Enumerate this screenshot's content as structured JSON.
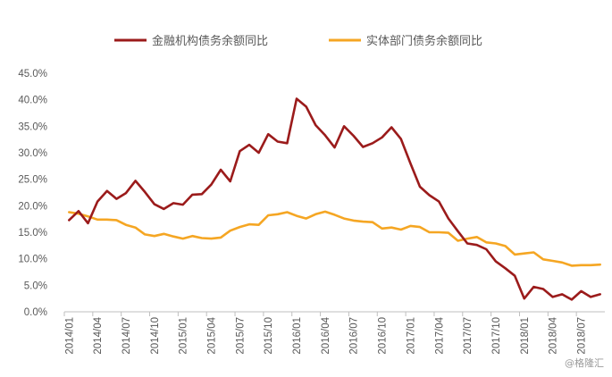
{
  "chart_data": {
    "type": "line",
    "title": "",
    "xlabel": "",
    "ylabel": "",
    "ylim": [
      0,
      45
    ],
    "y_ticks": [
      "0.0%",
      "5.0%",
      "10.0%",
      "15.0%",
      "20.0%",
      "25.0%",
      "30.0%",
      "35.0%",
      "40.0%",
      "45.0%"
    ],
    "grid": false,
    "legend_position": "top",
    "x_ticks": [
      "2014/01",
      "2014/04",
      "2014/07",
      "2014/10",
      "2015/01",
      "2015/04",
      "2015/07",
      "2015/10",
      "2016/01",
      "2016/04",
      "2016/07",
      "2016/10",
      "2017/01",
      "2017/04",
      "2017/07",
      "2017/10",
      "2018/01",
      "2018/04",
      "2018/07"
    ],
    "x": [
      "2014/01",
      "2014/02",
      "2014/03",
      "2014/04",
      "2014/05",
      "2014/06",
      "2014/07",
      "2014/08",
      "2014/09",
      "2014/10",
      "2014/11",
      "2014/12",
      "2015/01",
      "2015/02",
      "2015/03",
      "2015/04",
      "2015/05",
      "2015/06",
      "2015/07",
      "2015/08",
      "2015/09",
      "2015/10",
      "2015/11",
      "2015/12",
      "2016/01",
      "2016/02",
      "2016/03",
      "2016/04",
      "2016/05",
      "2016/06",
      "2016/07",
      "2016/08",
      "2016/09",
      "2016/10",
      "2016/11",
      "2016/12",
      "2017/01",
      "2017/02",
      "2017/03",
      "2017/04",
      "2017/05",
      "2017/06",
      "2017/07",
      "2017/08",
      "2017/09",
      "2017/10",
      "2017/11",
      "2017/12",
      "2018/01",
      "2018/02",
      "2018/03",
      "2018/04",
      "2018/05",
      "2018/06",
      "2018/07",
      "2018/08",
      "2018/09"
    ],
    "series": [
      {
        "name": "金融机构债务余额同比",
        "color": "#9B1B1B",
        "values": [
          17.3,
          19.0,
          16.7,
          20.8,
          22.8,
          21.3,
          22.4,
          24.7,
          22.6,
          20.3,
          19.4,
          20.5,
          20.2,
          22.1,
          22.2,
          24.0,
          26.8,
          24.6,
          30.3,
          31.5,
          30.0,
          33.5,
          32.1,
          31.8,
          40.2,
          38.7,
          35.2,
          33.3,
          31.0,
          35.0,
          33.2,
          31.1,
          31.8,
          32.9,
          34.8,
          32.6,
          28.0,
          23.6,
          22.0,
          20.8,
          17.6,
          15.2,
          12.9,
          12.6,
          11.8,
          9.5,
          8.2,
          6.8,
          2.5,
          4.7,
          4.3,
          2.8,
          3.3,
          2.3,
          3.9,
          2.8,
          3.3
        ]
      },
      {
        "name": "实体部门债务余额同比",
        "color": "#F5A623",
        "values": [
          18.8,
          18.5,
          18.0,
          17.4,
          17.4,
          17.3,
          16.4,
          15.9,
          14.6,
          14.3,
          14.7,
          14.2,
          13.8,
          14.3,
          13.9,
          13.8,
          14.0,
          15.3,
          16.0,
          16.5,
          16.4,
          18.2,
          18.4,
          18.8,
          18.1,
          17.6,
          18.4,
          18.9,
          18.3,
          17.6,
          17.2,
          17.0,
          16.9,
          15.7,
          15.9,
          15.5,
          16.2,
          16.0,
          15.0,
          15.0,
          14.9,
          13.4,
          13.8,
          14.1,
          13.1,
          12.9,
          12.4,
          10.8,
          11.0,
          11.2,
          9.9,
          9.6,
          9.3,
          8.7,
          8.8,
          8.8,
          8.9
        ]
      }
    ]
  },
  "watermark": "@格隆汇"
}
